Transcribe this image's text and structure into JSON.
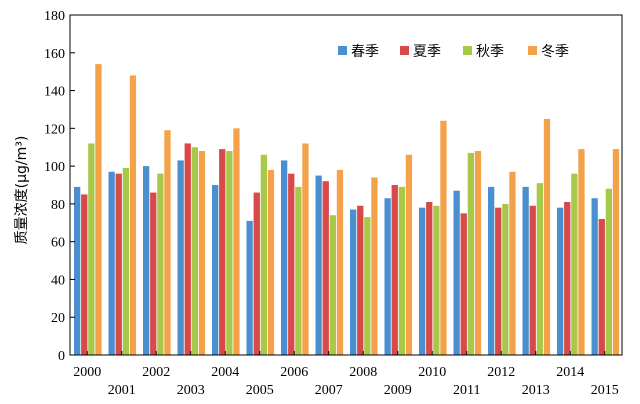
{
  "chart_data": {
    "type": "bar",
    "ylabel": "质量浓度(μg/m³)",
    "ylim": [
      0,
      180
    ],
    "yticks": [
      0,
      20,
      40,
      60,
      80,
      100,
      120,
      140,
      160,
      180
    ],
    "categories": [
      "2000",
      "2001",
      "2002",
      "2003",
      "2004",
      "2005",
      "2006",
      "2007",
      "2008",
      "2009",
      "2010",
      "2011",
      "2012",
      "2013",
      "2014",
      "2015"
    ],
    "legend_position": "top-right",
    "grid": false,
    "series": [
      {
        "name": "春季",
        "color": "#4a8fd0",
        "values": [
          89,
          97,
          100,
          103,
          90,
          71,
          103,
          95,
          77,
          83,
          78,
          87,
          89,
          89,
          78,
          83
        ]
      },
      {
        "name": "夏季",
        "color": "#d84a4a",
        "values": [
          85,
          96,
          86,
          112,
          109,
          86,
          96,
          92,
          79,
          90,
          81,
          75,
          78,
          79,
          81,
          72
        ]
      },
      {
        "name": "秋季",
        "color": "#a8c84a",
        "values": [
          112,
          99,
          96,
          110,
          108,
          106,
          89,
          74,
          73,
          89,
          79,
          107,
          80,
          91,
          96,
          88
        ]
      },
      {
        "name": "冬季",
        "color": "#f3a24a",
        "values": [
          154,
          148,
          119,
          108,
          120,
          98,
          112,
          98,
          94,
          106,
          124,
          108,
          97,
          125,
          109,
          109
        ]
      }
    ]
  }
}
